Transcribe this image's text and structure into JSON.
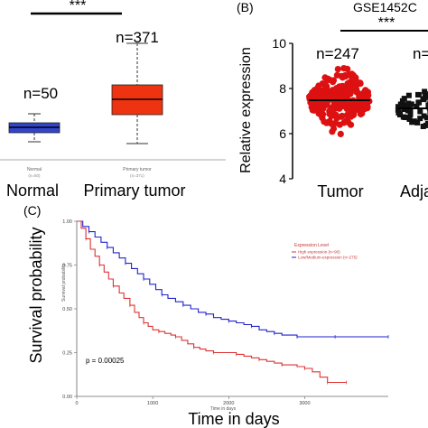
{
  "panel_a": {
    "significance": "***",
    "groups": [
      {
        "label": "Normal",
        "n_label": "n=50",
        "tick": "Normal",
        "tick_n": "(n=50)"
      },
      {
        "label": "Primary tumor",
        "n_label": "n=371",
        "tick": "Primary tumor",
        "tick_n": "(n=371)"
      }
    ]
  },
  "panel_b": {
    "letter": "(B)",
    "dataset": "GSE1452C",
    "significance": "***",
    "ylabel": "Relative expression",
    "groups": [
      {
        "label": "Tumor",
        "n_label": "n=247"
      },
      {
        "label": "Adja",
        "n_label": "n="
      }
    ]
  },
  "panel_c": {
    "letter": "(C)",
    "ylabel": "Survival probability",
    "ylabel_small": "Survival probability",
    "xlabel": "Time in days",
    "xlabel_small": "Time in days",
    "pvalue": "p = 0.00025",
    "legend_title": "Expression Level",
    "legend_high": "High expression (n=90)",
    "legend_low": "Low/Medium-expression (n=275)"
  },
  "colors": {
    "normal_box": "#3344cc",
    "tumor_box": "#ee3311",
    "tumor_dots": "#dd1111",
    "adjacent_dots": "#111111",
    "high_curve": "#dd3333",
    "low_curve": "#2222cc"
  },
  "chart_data": [
    {
      "type": "box",
      "categories": [
        "Normal",
        "Primary tumor"
      ],
      "series": [
        {
          "name": "Normal",
          "whisker_low": 0.4,
          "q1": 0.9,
          "median": 1.05,
          "q3": 1.2,
          "whisker_high": 1.75
        },
        {
          "name": "Primary tumor",
          "whisker_low": 0.9,
          "q1": 2.2,
          "median": 2.85,
          "q3": 3.75,
          "whisker_high": 6.6
        }
      ]
    },
    {
      "type": "scatter",
      "categories": [
        "Tumor",
        "Adja"
      ],
      "ylim": [
        4,
        10
      ],
      "yticks": [
        4,
        6,
        8,
        10
      ],
      "series": [
        {
          "name": "Tumor",
          "mean": 7.5,
          "min": 5.9,
          "max": 9.1
        },
        {
          "name": "Adja",
          "mean": 7.1,
          "min": 6.1,
          "max": 8.0
        }
      ]
    },
    {
      "type": "line",
      "xlim": [
        0,
        4100
      ],
      "ylim": [
        0,
        1
      ],
      "xticks": [
        0,
        1000,
        2000,
        3000
      ],
      "yticks": [
        0.0,
        0.25,
        0.5,
        0.75,
        1.0
      ],
      "series": [
        {
          "name": "High expression (n=90)",
          "x": [
            0,
            60,
            120,
            180,
            240,
            300,
            360,
            420,
            480,
            560,
            620,
            700,
            760,
            820,
            880,
            940,
            1000,
            1080,
            1160,
            1240,
            1300,
            1380,
            1460,
            1540,
            1620,
            1700,
            1800,
            1900,
            2000,
            2100,
            2200,
            2300,
            2400,
            2500,
            2600,
            2700,
            2800,
            2900,
            3000,
            3100,
            3200,
            3300,
            3400,
            3500,
            3550
          ],
          "y": [
            1.0,
            0.96,
            0.9,
            0.84,
            0.8,
            0.75,
            0.71,
            0.67,
            0.63,
            0.59,
            0.56,
            0.52,
            0.48,
            0.45,
            0.42,
            0.4,
            0.38,
            0.37,
            0.36,
            0.35,
            0.34,
            0.32,
            0.3,
            0.28,
            0.27,
            0.26,
            0.25,
            0.25,
            0.25,
            0.24,
            0.23,
            0.22,
            0.21,
            0.2,
            0.19,
            0.18,
            0.18,
            0.17,
            0.16,
            0.14,
            0.11,
            0.08,
            0.08,
            0.08,
            0.08
          ]
        },
        {
          "name": "Low/Medium-expression (n=275)",
          "x": [
            0,
            80,
            160,
            240,
            320,
            400,
            480,
            560,
            640,
            720,
            800,
            880,
            960,
            1040,
            1120,
            1200,
            1300,
            1400,
            1500,
            1600,
            1700,
            1800,
            1900,
            2000,
            2100,
            2200,
            2300,
            2400,
            2500,
            2600,
            2700,
            2800,
            2900,
            3000,
            3200,
            3400,
            3600,
            3800,
            4100
          ],
          "y": [
            1.0,
            0.97,
            0.94,
            0.91,
            0.88,
            0.85,
            0.82,
            0.79,
            0.76,
            0.73,
            0.7,
            0.67,
            0.64,
            0.61,
            0.58,
            0.56,
            0.54,
            0.52,
            0.5,
            0.48,
            0.47,
            0.45,
            0.44,
            0.43,
            0.42,
            0.41,
            0.4,
            0.38,
            0.37,
            0.36,
            0.35,
            0.35,
            0.34,
            0.34,
            0.34,
            0.34,
            0.34,
            0.34,
            0.34
          ]
        }
      ]
    }
  ]
}
